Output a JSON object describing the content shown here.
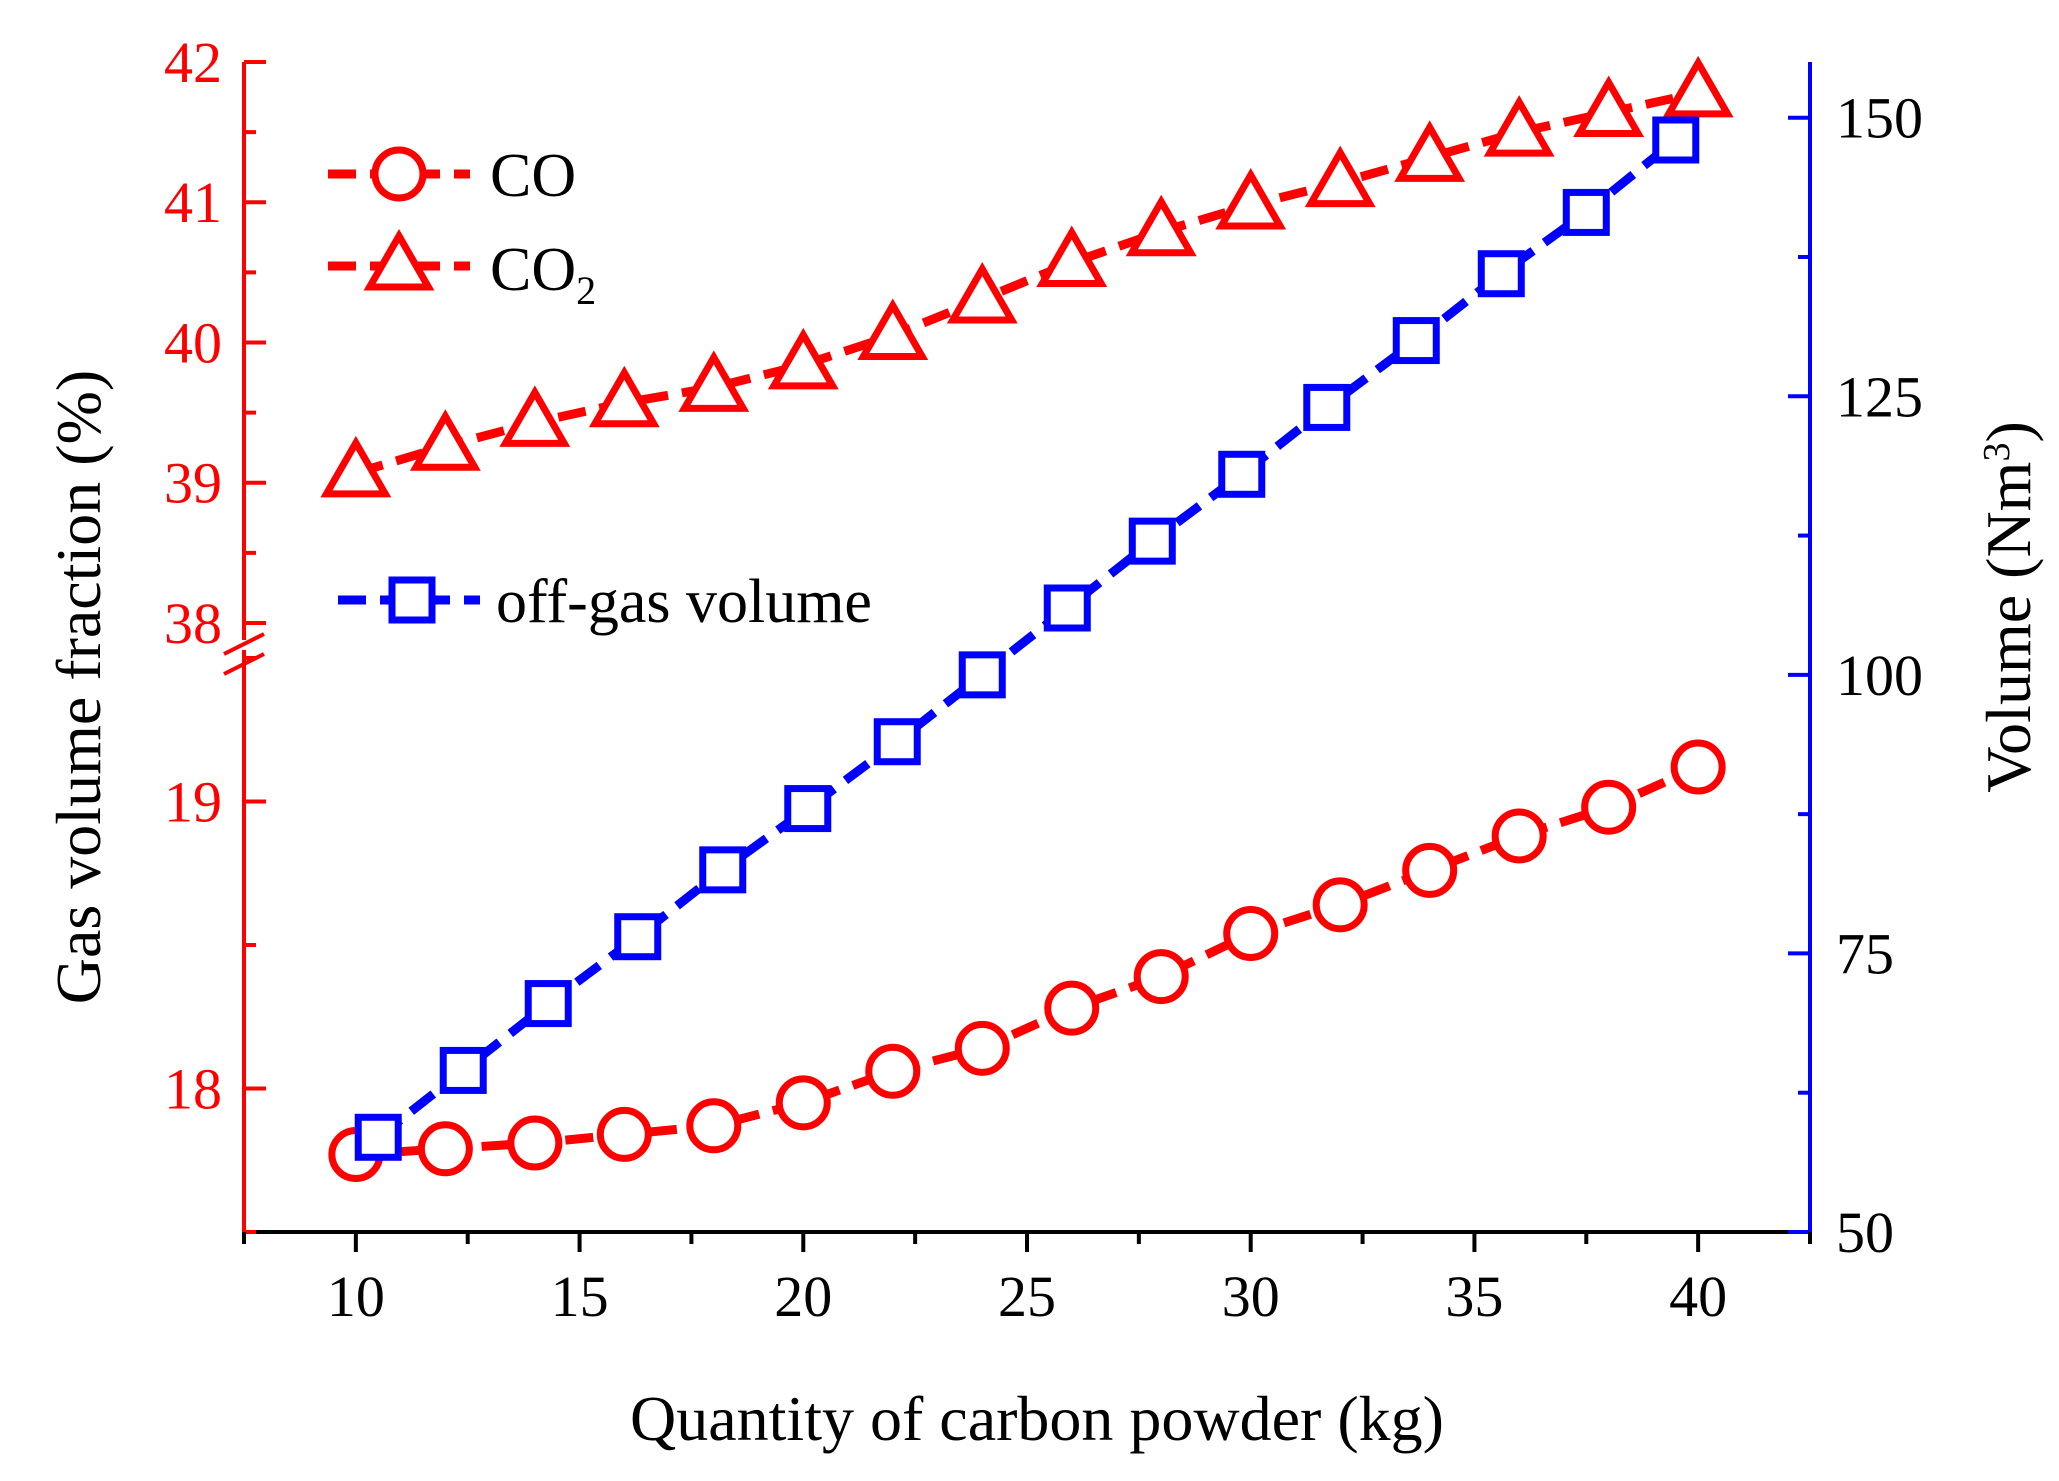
{
  "chart_data": {
    "type": "line",
    "xlabel": "Quantity of carbon powder (kg)",
    "ylabel_left": "Gas volume fraction (%)",
    "ylabel_right": {
      "text": "Volume (Nm",
      "sup": "3",
      "close": ")"
    },
    "x_range": [
      7.5,
      42.5
    ],
    "x_ticks": [
      "10",
      "15",
      "20",
      "25",
      "30",
      "35",
      "40"
    ],
    "x_tick_values": [
      10,
      15,
      20,
      25,
      30,
      35,
      40
    ],
    "left_axis_upper_segment": {
      "range": [
        37.95,
        42
      ],
      "ticks": [
        "42",
        "41",
        "40",
        "39",
        "38"
      ],
      "tick_values": [
        42,
        41,
        40,
        39,
        38
      ]
    },
    "left_axis_lower_segment": {
      "range": [
        17.5,
        19.5
      ],
      "ticks": [
        "19",
        "18"
      ],
      "tick_values": [
        19,
        18
      ]
    },
    "right_axis": {
      "range": [
        50,
        155
      ],
      "ticks": [
        "150",
        "125",
        "100",
        "75",
        "50"
      ],
      "tick_values": [
        150,
        125,
        100,
        75,
        50
      ]
    },
    "legend": [
      "CO",
      "CO2",
      "off-gas volume"
    ],
    "legend_co2_main": "CO",
    "legend_co2_sub": "2",
    "colors": {
      "co": "#ff0000",
      "co2": "#ff0000",
      "volume": "#0000ff",
      "left_axis": "#ff0000",
      "right_axis": "#0000ff"
    },
    "series": [
      {
        "name": "CO",
        "axis": "left-lower",
        "marker": "circle",
        "x": [
          10,
          12,
          14,
          16,
          18,
          20,
          22,
          24,
          26,
          28,
          30,
          32,
          34,
          36,
          38,
          40
        ],
        "values": [
          17.77,
          17.79,
          17.81,
          17.84,
          17.87,
          17.95,
          18.06,
          18.14,
          18.28,
          18.39,
          18.54,
          18.64,
          18.76,
          18.88,
          18.98,
          19.12
        ]
      },
      {
        "name": "CO2",
        "axis": "left-upper",
        "marker": "triangle",
        "x": [
          10,
          12,
          14,
          16,
          18,
          20,
          22,
          24,
          26,
          28,
          30,
          32,
          34,
          36,
          38,
          40
        ],
        "values": [
          39.07,
          39.26,
          39.43,
          39.57,
          39.68,
          39.84,
          40.05,
          40.31,
          40.57,
          40.79,
          40.98,
          41.14,
          41.32,
          41.5,
          41.64,
          41.78
        ]
      },
      {
        "name": "off-gas volume",
        "axis": "right",
        "marker": "square",
        "x": [
          10.5,
          12.4,
          14.3,
          16.3,
          18.2,
          20.1,
          22.1,
          24.0,
          25.9,
          27.8,
          29.8,
          31.7,
          33.7,
          35.6,
          37.5,
          39.5
        ],
        "values": [
          58.5,
          64.5,
          70.5,
          76.5,
          82.5,
          88.0,
          94.0,
          100.0,
          106.0,
          112.0,
          118.0,
          124.0,
          130.0,
          136.0,
          141.5,
          148.0
        ]
      }
    ]
  }
}
